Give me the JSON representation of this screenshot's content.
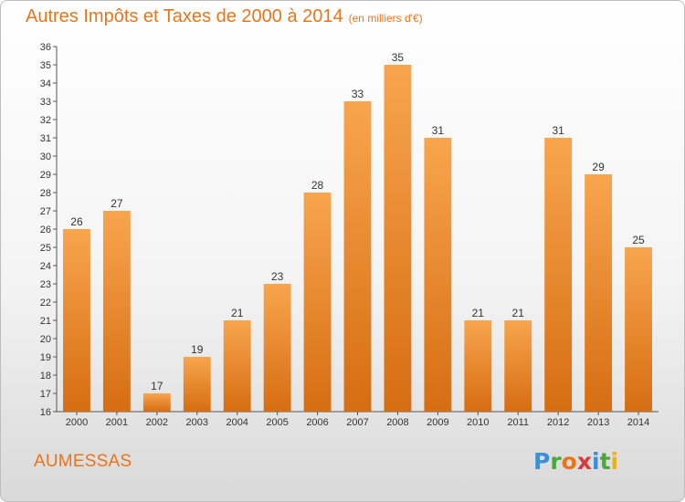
{
  "title": "Autres Impôts et Taxes de 2000 à 2014",
  "subtitle": "(en milliers d'€)",
  "commune": "AUMESSAS",
  "brand": "Proxiti",
  "colors": {
    "accent": "#e8751a",
    "bar_top": "#f8a54e",
    "bar_bottom": "#d66d12"
  },
  "chart_data": {
    "type": "bar",
    "title": "Autres Impôts et Taxes de 2000 à 2014",
    "subtitle": "(en milliers d'€)",
    "categories": [
      "2000",
      "2001",
      "2002",
      "2003",
      "2004",
      "2005",
      "2006",
      "2007",
      "2008",
      "2009",
      "2010",
      "2011",
      "2012",
      "2013",
      "2014"
    ],
    "values": [
      26,
      27,
      17,
      19,
      21,
      23,
      28,
      33,
      35,
      31,
      21,
      21,
      31,
      29,
      25
    ],
    "ylim": [
      16,
      36
    ],
    "yticks": [
      16,
      17,
      18,
      19,
      20,
      21,
      22,
      23,
      24,
      25,
      26,
      27,
      28,
      29,
      30,
      31,
      32,
      33,
      34,
      35,
      36
    ],
    "grid": false,
    "data_labels": true
  }
}
